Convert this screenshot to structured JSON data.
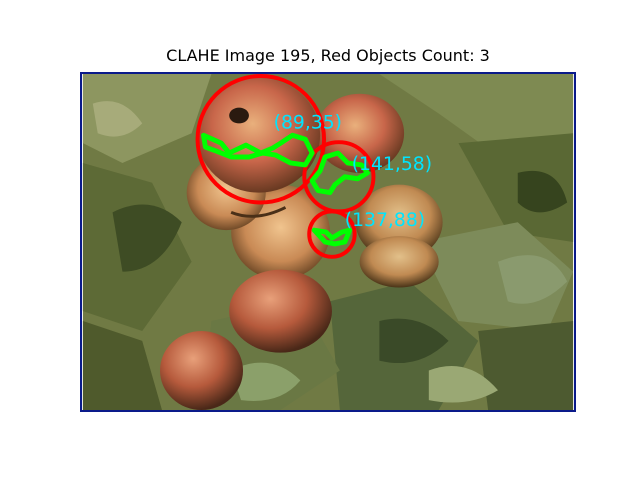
{
  "figure": {
    "title": "CLAHE Image 195, Red Objects Count: 3"
  },
  "colors": {
    "circle": "#ff0000",
    "contour": "#00ff00",
    "label": "#00e5ff",
    "frame": "#0a1a8a"
  },
  "detections": [
    {
      "label": "(89,35)"
    },
    {
      "label": "(141,58)"
    },
    {
      "label": "(137,88)"
    }
  ]
}
